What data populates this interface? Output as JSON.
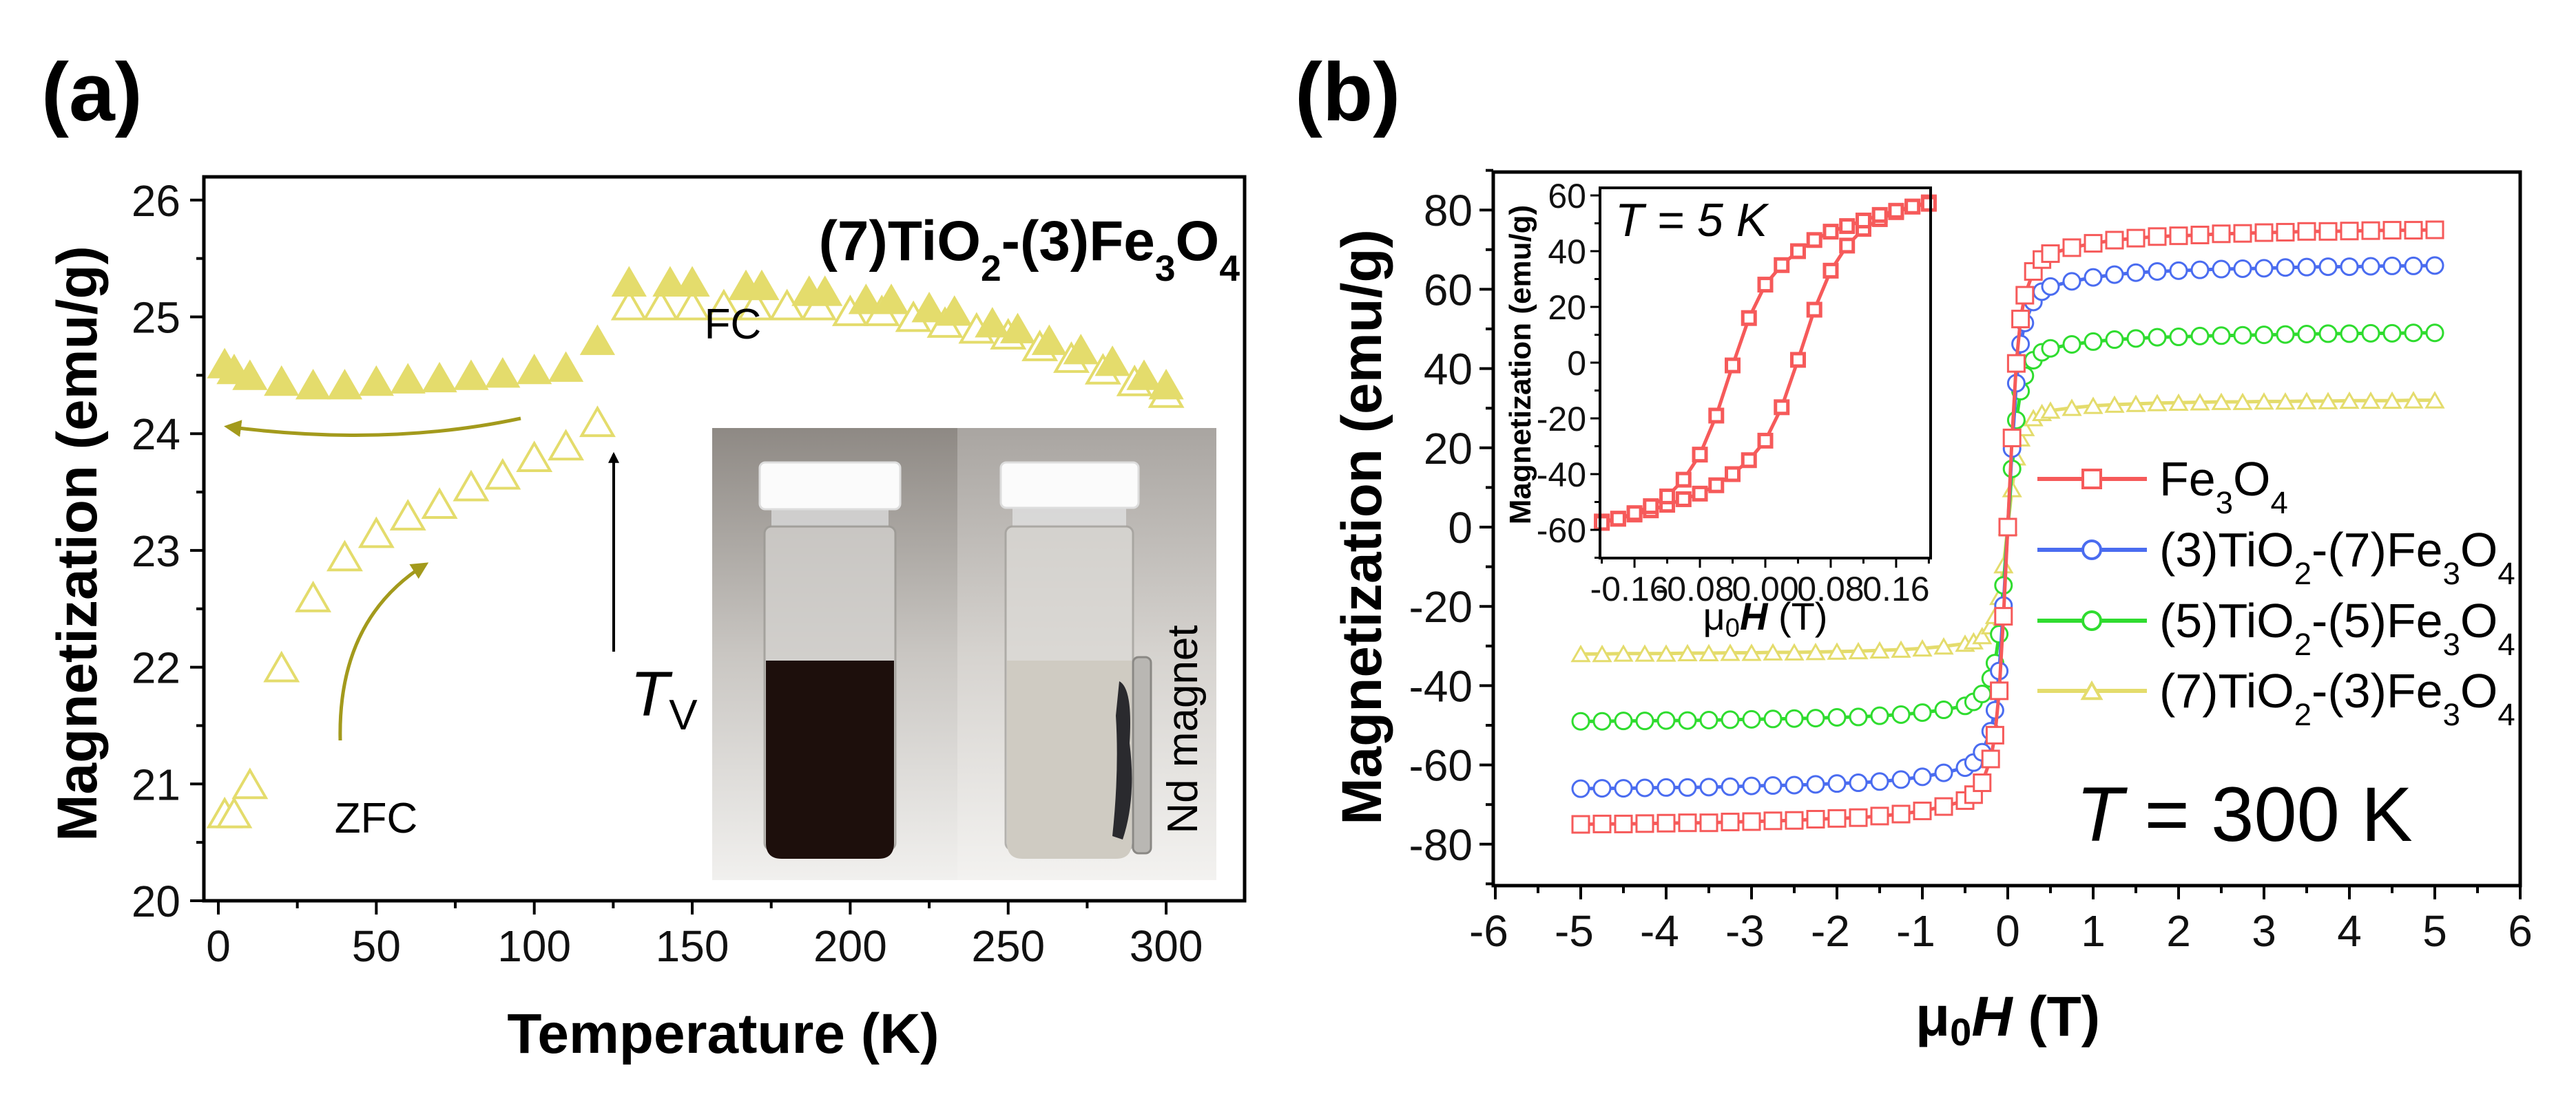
{
  "panel_labels": {
    "a": "(a)",
    "b": "(b)"
  },
  "panel_a": {
    "sample_title": "(7)TiO2-(3)Fe3O4",
    "fc_label": "FC",
    "zfc_label": "ZFC",
    "tv_label": {
      "var": "T",
      "sub": "V"
    },
    "photo_label": "Nd magnet"
  },
  "panel_b": {
    "temperature_label": {
      "var": "T",
      "rest": " = 300 K"
    },
    "inset_temperature_label": "T = 5 K"
  },
  "colors": {
    "fe3o4": "#f65a5a",
    "tio2_3": "#4a6cf0",
    "tio2_5": "#2fdc2f",
    "tio2_7": "#e4dc6c",
    "arrow": "#a39a1c"
  },
  "chart_data": [
    {
      "type": "scatter",
      "title": "(7)TiO2-(3)Fe3O4",
      "xlabel": "Temperature (K)",
      "ylabel": "Magnetization (emu/g)",
      "xlim": [
        -4.6,
        325
      ],
      "ylim": [
        20,
        26.2
      ],
      "x_ticks": [
        "0",
        "50",
        "100",
        "150",
        "200",
        "250",
        "300"
      ],
      "y_ticks": [
        "20",
        "21",
        "22",
        "23",
        "24",
        "25",
        "26"
      ],
      "annotations": [
        "FC",
        "ZFC",
        "T_V"
      ],
      "series": [
        {
          "name": "FC",
          "marker": "filled-triangle",
          "x": [
            2,
            5,
            10,
            20,
            30,
            40,
            50,
            60,
            70,
            80,
            90,
            100,
            110,
            120,
            130,
            143,
            150,
            167,
            172,
            187,
            192,
            205,
            213,
            225,
            233,
            245,
            253,
            263,
            273,
            283,
            293,
            300
          ],
          "y": [
            24.6,
            24.55,
            24.5,
            24.45,
            24.42,
            24.42,
            24.45,
            24.47,
            24.48,
            24.5,
            24.52,
            24.55,
            24.57,
            24.8,
            25.3,
            25.3,
            25.3,
            25.27,
            25.27,
            25.22,
            25.22,
            25.15,
            25.15,
            25.08,
            25.05,
            24.95,
            24.9,
            24.8,
            24.72,
            24.62,
            24.5,
            24.42
          ]
        },
        {
          "name": "ZFC",
          "marker": "open-triangle",
          "x": [
            2,
            5,
            10,
            20,
            30,
            40,
            50,
            60,
            70,
            80,
            90,
            100,
            110,
            120,
            130,
            140,
            150,
            160,
            170,
            180,
            190,
            200,
            210,
            220,
            230,
            240,
            250,
            260,
            270,
            280,
            290,
            300
          ],
          "y": [
            20.75,
            20.75,
            21.0,
            22.0,
            22.6,
            22.95,
            23.15,
            23.3,
            23.4,
            23.55,
            23.65,
            23.8,
            23.9,
            24.1,
            25.1,
            25.1,
            25.1,
            25.1,
            25.1,
            25.1,
            25.1,
            25.05,
            25.05,
            25.0,
            24.95,
            24.9,
            24.85,
            24.75,
            24.65,
            24.55,
            24.45,
            24.35
          ]
        }
      ]
    },
    {
      "type": "line",
      "xlabel": "μ0H (T)",
      "ylabel": "Magnetization (emu/g)",
      "xlim": [
        -6,
        6
      ],
      "ylim": [
        -90,
        90
      ],
      "x_ticks": [
        "-6",
        "-5",
        "-4",
        "-3",
        "-2",
        "-1",
        "0",
        "1",
        "2",
        "3",
        "4",
        "5",
        "6"
      ],
      "y_ticks": [
        "-80",
        "-60",
        "-40",
        "-20",
        "0",
        "20",
        "40",
        "60",
        "80"
      ],
      "legend_position": "right",
      "x": [
        -5,
        -4.75,
        -4.5,
        -4.25,
        -4,
        -3.75,
        -3.5,
        -3.25,
        -3,
        -2.75,
        -2.5,
        -2.25,
        -2,
        -1.75,
        -1.5,
        -1.25,
        -1,
        -0.75,
        -0.5,
        -0.4,
        -0.3,
        -0.2,
        -0.15,
        -0.1,
        -0.05,
        0,
        0.05,
        0.1,
        0.15,
        0.2,
        0.3,
        0.4,
        0.5,
        0.75,
        1,
        1.25,
        1.5,
        1.75,
        2,
        2.25,
        2.5,
        2.75,
        3,
        3.25,
        3.5,
        3.75,
        4,
        4.25,
        4.5,
        4.75,
        5
      ],
      "series": [
        {
          "name": "Fe3O4",
          "marker": "square",
          "color_key": "fe3o4",
          "y": [
            -75,
            -74.9,
            -74.9,
            -74.8,
            -74.7,
            -74.6,
            -74.6,
            -74.4,
            -74.3,
            -74.1,
            -74,
            -73.7,
            -73.5,
            -73.3,
            -72.9,
            -72.4,
            -71.6,
            -70.5,
            -69,
            -67.5,
            -64.5,
            -58.5,
            -52.5,
            -41.3,
            -22.5,
            0,
            22.5,
            41.3,
            52.5,
            58.5,
            64.5,
            67.5,
            69,
            70.5,
            71.6,
            72.4,
            72.9,
            73.3,
            73.5,
            73.7,
            74,
            74.1,
            74.3,
            74.4,
            74.6,
            74.6,
            74.7,
            74.8,
            74.9,
            74.9,
            75
          ]
        },
        {
          "name": "(3)TiO2-(7)Fe3O4",
          "marker": "circle",
          "color_key": "tio2_3",
          "y": [
            -66,
            -65.9,
            -65.9,
            -65.8,
            -65.7,
            -65.7,
            -65.6,
            -65.5,
            -65.3,
            -65.2,
            -65.1,
            -64.9,
            -64.7,
            -64.5,
            -64.2,
            -63.7,
            -63,
            -62,
            -60.7,
            -59.4,
            -56.8,
            -51.5,
            -46.2,
            -36.3,
            -19.8,
            0,
            19.8,
            36.3,
            46.2,
            51.5,
            56.8,
            59.4,
            60.7,
            62,
            63,
            63.7,
            64.2,
            64.5,
            64.7,
            64.9,
            65.1,
            65.2,
            65.3,
            65.5,
            65.6,
            65.7,
            65.7,
            65.8,
            65.9,
            65.9,
            66
          ]
        },
        {
          "name": "(5)TiO2-(5)Fe3O4",
          "marker": "circle",
          "color_key": "tio2_5",
          "y": [
            -49,
            -49,
            -48.9,
            -48.9,
            -48.8,
            -48.8,
            -48.7,
            -48.6,
            -48.5,
            -48.4,
            -48.3,
            -48.2,
            -48,
            -47.9,
            -47.6,
            -47.3,
            -46.8,
            -46.1,
            -45.1,
            -44.1,
            -42.1,
            -38.2,
            -34.3,
            -27,
            -14.7,
            0,
            14.7,
            27,
            34.3,
            38.2,
            42.1,
            44.1,
            45.1,
            46.1,
            46.8,
            47.3,
            47.6,
            47.9,
            48,
            48.2,
            48.3,
            48.4,
            48.5,
            48.6,
            48.7,
            48.8,
            48.8,
            48.9,
            48.9,
            49,
            49
          ]
        },
        {
          "name": "(7)TiO2-(3)Fe3O4",
          "marker": "triangle",
          "color_key": "tio2_7",
          "y": [
            -32,
            -32,
            -31.9,
            -31.9,
            -31.9,
            -31.8,
            -31.8,
            -31.7,
            -31.7,
            -31.6,
            -31.6,
            -31.5,
            -31.4,
            -31.3,
            -31.1,
            -30.9,
            -30.6,
            -30.1,
            -29.4,
            -28.8,
            -27.5,
            -25,
            -22.4,
            -17.6,
            -9.6,
            0,
            9.6,
            17.6,
            22.4,
            25,
            27.5,
            28.8,
            29.4,
            30.1,
            30.6,
            30.9,
            31.1,
            31.3,
            31.4,
            31.5,
            31.6,
            31.6,
            31.7,
            31.7,
            31.8,
            31.8,
            31.9,
            31.9,
            31.9,
            32,
            32
          ]
        }
      ]
    },
    {
      "type": "line",
      "title": "T = 5 K",
      "xlabel": "μ0H (T)",
      "ylabel": "Magnetization (emu/g)",
      "xlim": [
        -0.204,
        0.202
      ],
      "ylim": [
        -71,
        63.5
      ],
      "x_ticks": [
        "-0.16",
        "-0.08",
        "0.00",
        "0.08",
        "0.16"
      ],
      "y_ticks": [
        "-60",
        "-40",
        "-20",
        "0",
        "20",
        "40",
        "60"
      ],
      "series": [
        {
          "name": "Fe3O4 ascending branch",
          "marker": "square",
          "color_key": "fe3o4",
          "x": [
            -0.2,
            -0.18,
            -0.16,
            -0.14,
            -0.12,
            -0.1,
            -0.08,
            -0.06,
            -0.04,
            -0.02,
            0,
            0.02,
            0.04,
            0.06,
            0.08,
            0.1,
            0.12,
            0.14,
            0.16,
            0.18,
            0.2
          ],
          "y": [
            -57,
            -56,
            -54.5,
            -53,
            -51,
            -49,
            -47,
            -44,
            -40,
            -35,
            -28,
            -16,
            1,
            19,
            33,
            42,
            48,
            51.5,
            54,
            56,
            57.5
          ]
        },
        {
          "name": "Fe3O4 descending branch",
          "marker": "square",
          "color_key": "fe3o4",
          "x": [
            0.2,
            0.18,
            0.16,
            0.14,
            0.12,
            0.1,
            0.08,
            0.06,
            0.04,
            0.02,
            0,
            -0.02,
            -0.04,
            -0.06,
            -0.08,
            -0.1,
            -0.12,
            -0.14,
            -0.16,
            -0.18,
            -0.2
          ],
          "y": [
            57,
            56,
            54.5,
            53,
            51,
            49,
            47,
            44,
            40,
            35,
            28,
            16,
            -1,
            -19,
            -33,
            -42,
            -48,
            -51.5,
            -54,
            -56,
            -57.5
          ]
        }
      ]
    }
  ],
  "axis_text": {
    "b_xlabel": {
      "mu": "μ",
      "sub": "0",
      "var": "H",
      "unit": " (T)"
    }
  }
}
